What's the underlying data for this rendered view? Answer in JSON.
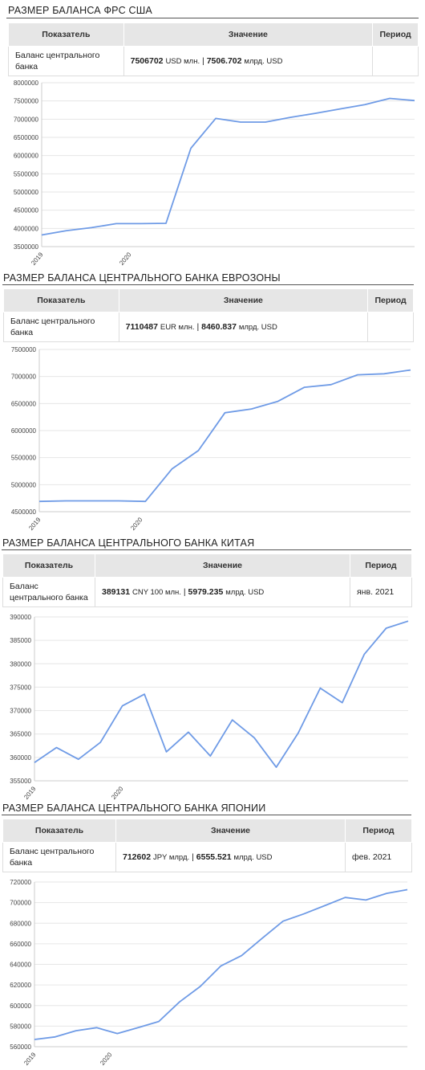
{
  "sections": [
    {
      "title": "РАЗМЕР БАЛАНСА ФРС США",
      "table": {
        "headers": [
          "Показатель",
          "Значение",
          "Период"
        ],
        "indicator": "Баланс центрального банка",
        "value_main": "7506702",
        "value_unit": "USD млн.",
        "separator": "|",
        "value_usd": "7506.702",
        "value_usd_unit": "млрд. USD",
        "period": ""
      },
      "chart_data": {
        "type": "line",
        "x_tick_labels": [
          "2019",
          "2020"
        ],
        "y_tick_labels": [
          "3500000",
          "4000000",
          "4500000",
          "5000000",
          "5500000",
          "6000000",
          "6500000",
          "7000000",
          "7500000",
          "8000000"
        ],
        "ylim": [
          3500000,
          8000000
        ],
        "grid": true,
        "series": [
          {
            "color": "#6f9be6",
            "values": [
              3820000,
              3940000,
              4020000,
              4130000,
              4130000,
              4140000,
              6200000,
              7020000,
              6920000,
              6920000,
              7050000,
              7160000,
              7280000,
              7400000,
              7570000,
              7510000
            ]
          }
        ]
      }
    },
    {
      "title": "РАЗМЕР БАЛАНСА ЦЕНТРАЛЬНОГО БАНКА ЕВРОЗОНЫ",
      "table": {
        "headers": [
          "Показатель",
          "Значение",
          "Период"
        ],
        "indicator": "Баланс центрального банка",
        "value_main": "7110487",
        "value_unit": "EUR млн.",
        "separator": "|",
        "value_usd": "8460.837",
        "value_usd_unit": "млрд. USD",
        "period": ""
      },
      "chart_data": {
        "type": "line",
        "x_tick_labels": [
          "2019",
          "2020"
        ],
        "y_tick_labels": [
          "4500000",
          "5000000",
          "5500000",
          "6000000",
          "6500000",
          "7000000",
          "7500000"
        ],
        "ylim": [
          4500000,
          7500000
        ],
        "grid": true,
        "series": [
          {
            "color": "#6f9be6",
            "values": [
              4690000,
              4700000,
              4700000,
              4700000,
              4690000,
              5290000,
              5630000,
              6330000,
              6400000,
              6540000,
              6800000,
              6850000,
              7030000,
              7050000,
              7120000
            ]
          }
        ]
      }
    },
    {
      "title": "РАЗМЕР БАЛАНСА ЦЕНТРАЛЬНОГО БАНКА КИТАЯ",
      "table": {
        "headers": [
          "Показатель",
          "Значение",
          "Период"
        ],
        "indicator": "Баланс центрального банка",
        "value_main": "389131",
        "value_unit": "CNY 100 млн.",
        "separator": "|",
        "value_usd": "5979.235",
        "value_usd_unit": "млрд. USD",
        "period": "янв. 2021"
      },
      "chart_data": {
        "type": "line",
        "x_tick_labels": [
          "2019",
          "2020"
        ],
        "y_tick_labels": [
          "355000",
          "360000",
          "365000",
          "370000",
          "375000",
          "380000",
          "385000",
          "390000"
        ],
        "ylim": [
          355000,
          390000
        ],
        "grid": true,
        "series": [
          {
            "color": "#6f9be6",
            "values": [
              358900,
              362100,
              359600,
              363200,
              371000,
              373500,
              361200,
              365400,
              360300,
              368000,
              364200,
              357900,
              365200,
              374800,
              371700,
              382000,
              387600,
              389100
            ]
          }
        ]
      }
    },
    {
      "title": "РАЗМЕР БАЛАНСА ЦЕНТРАЛЬНОГО БАНКА ЯПОНИИ",
      "table": {
        "headers": [
          "Показатель",
          "Значение",
          "Период"
        ],
        "indicator": "Баланс центрального банка",
        "value_main": "712602",
        "value_unit": "JPY млрд.",
        "separator": "|",
        "value_usd": "6555.521",
        "value_usd_unit": "млрд. USD",
        "period": "фев. 2021"
      },
      "chart_data": {
        "type": "line",
        "x_tick_labels": [
          "2019",
          "2020"
        ],
        "y_tick_labels": [
          "560000",
          "580000",
          "600000",
          "620000",
          "640000",
          "660000",
          "680000",
          "700000",
          "720000"
        ],
        "ylim": [
          560000,
          720000
        ],
        "grid": true,
        "series": [
          {
            "color": "#6f9be6",
            "values": [
              567000,
              569500,
              575500,
              578500,
              572800,
              578500,
              584500,
              603500,
              618500,
              638500,
              648500,
              665500,
              682000,
              689000,
              697000,
              705000,
              702500,
              709000,
              712600
            ]
          }
        ]
      }
    }
  ]
}
